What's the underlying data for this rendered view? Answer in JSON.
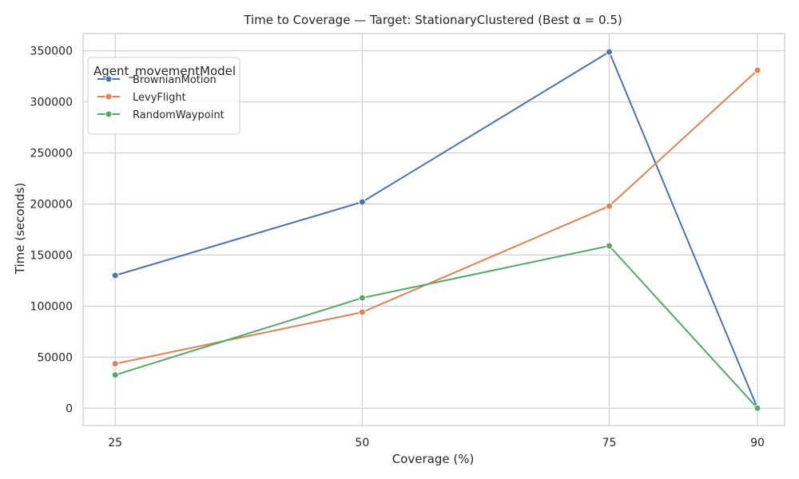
{
  "chart_data": {
    "type": "line",
    "title": "Time to Coverage — Target: StationaryClustered (Best α = 0.5)",
    "xlabel": "Coverage (%)",
    "ylabel": "Time (seconds)",
    "x": [
      25,
      50,
      75,
      90
    ],
    "x_tick_labels": [
      "25",
      "50",
      "75",
      "90"
    ],
    "y_ticks": [
      0,
      50000,
      100000,
      150000,
      200000,
      250000,
      300000,
      350000
    ],
    "y_tick_labels": [
      "0",
      "50000",
      "100000",
      "150000",
      "200000",
      "250000",
      "300000",
      "350000"
    ],
    "xlim": [
      21.75,
      92.75
    ],
    "ylim": [
      -17000,
      367000
    ],
    "grid": true,
    "legend": {
      "title": "Agent_movementModel",
      "placement": "top-left"
    },
    "series": [
      {
        "name": "BrownianMotion",
        "color": "#4c72b0",
        "values": [
          130000,
          202000,
          349000,
          0
        ]
      },
      {
        "name": "LevyFlight",
        "color": "#dd8452",
        "values": [
          43500,
          94000,
          198000,
          331000
        ]
      },
      {
        "name": "RandomWaypoint",
        "color": "#55a868",
        "values": [
          32500,
          108000,
          159000,
          0
        ]
      }
    ]
  }
}
